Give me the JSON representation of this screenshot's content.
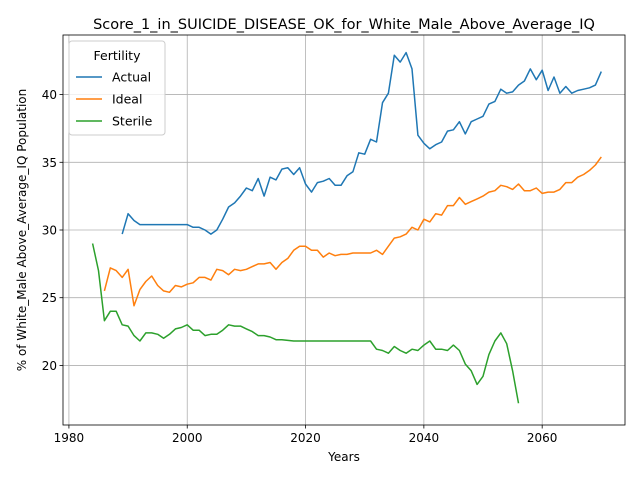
{
  "chart_data": {
    "type": "line",
    "title": "Score_1_in_SUICIDE_DISEASE_OK_for_White_Male_Above_Average_IQ",
    "xlabel": "Years",
    "ylabel": "% of White_Male Above_Average_IQ Population",
    "xlim": [
      1979,
      2074
    ],
    "ylim": [
      15.6,
      44.4
    ],
    "xticks": [
      1980,
      2000,
      2020,
      2040,
      2060
    ],
    "yticks": [
      20,
      25,
      30,
      35,
      40
    ],
    "grid": true,
    "legend": {
      "title": "Fertility",
      "placement": "top-left"
    },
    "series": [
      {
        "name": "Actual",
        "color": "#1f77b4",
        "points": [
          [
            1989,
            29.7
          ],
          [
            1990,
            31.2
          ],
          [
            1991,
            30.7
          ],
          [
            1992,
            30.4
          ],
          [
            1993,
            30.4
          ],
          [
            1995,
            30.4
          ],
          [
            2000,
            30.4
          ],
          [
            2001,
            30.2
          ],
          [
            2002,
            30.2
          ],
          [
            2003,
            30.0
          ],
          [
            2004,
            29.7
          ],
          [
            2005,
            30.0
          ],
          [
            2006,
            30.8
          ],
          [
            2007,
            31.7
          ],
          [
            2008,
            32.0
          ],
          [
            2009,
            32.5
          ],
          [
            2010,
            33.1
          ],
          [
            2011,
            32.9
          ],
          [
            2012,
            33.8
          ],
          [
            2013,
            32.5
          ],
          [
            2014,
            33.9
          ],
          [
            2015,
            33.7
          ],
          [
            2016,
            34.5
          ],
          [
            2017,
            34.6
          ],
          [
            2018,
            34.1
          ],
          [
            2019,
            34.6
          ],
          [
            2020,
            33.4
          ],
          [
            2021,
            32.8
          ],
          [
            2022,
            33.5
          ],
          [
            2023,
            33.6
          ],
          [
            2024,
            33.8
          ],
          [
            2025,
            33.3
          ],
          [
            2026,
            33.3
          ],
          [
            2027,
            34.0
          ],
          [
            2028,
            34.3
          ],
          [
            2029,
            35.7
          ],
          [
            2030,
            35.6
          ],
          [
            2031,
            36.7
          ],
          [
            2032,
            36.5
          ],
          [
            2033,
            39.4
          ],
          [
            2034,
            40.1
          ],
          [
            2035,
            42.9
          ],
          [
            2036,
            42.4
          ],
          [
            2037,
            43.1
          ],
          [
            2038,
            41.9
          ],
          [
            2039,
            37.0
          ],
          [
            2040,
            36.4
          ],
          [
            2041,
            36.0
          ],
          [
            2042,
            36.3
          ],
          [
            2043,
            36.5
          ],
          [
            2044,
            37.3
          ],
          [
            2045,
            37.4
          ],
          [
            2046,
            38.0
          ],
          [
            2047,
            37.1
          ],
          [
            2048,
            38.0
          ],
          [
            2049,
            38.2
          ],
          [
            2050,
            38.4
          ],
          [
            2051,
            39.3
          ],
          [
            2052,
            39.5
          ],
          [
            2053,
            40.4
          ],
          [
            2054,
            40.1
          ],
          [
            2055,
            40.2
          ],
          [
            2056,
            40.7
          ],
          [
            2057,
            41.0
          ],
          [
            2058,
            41.9
          ],
          [
            2059,
            41.1
          ],
          [
            2060,
            41.8
          ],
          [
            2061,
            40.3
          ],
          [
            2062,
            41.3
          ],
          [
            2063,
            40.1
          ],
          [
            2064,
            40.6
          ],
          [
            2065,
            40.1
          ],
          [
            2066,
            40.3
          ],
          [
            2067,
            40.4
          ],
          [
            2068,
            40.5
          ],
          [
            2069,
            40.7
          ],
          [
            2070,
            41.7
          ]
        ]
      },
      {
        "name": "Ideal",
        "color": "#ff7f0e",
        "points": [
          [
            1986,
            25.5
          ],
          [
            1987,
            27.2
          ],
          [
            1988,
            27.0
          ],
          [
            1989,
            26.5
          ],
          [
            1990,
            27.1
          ],
          [
            1991,
            24.4
          ],
          [
            1992,
            25.6
          ],
          [
            1993,
            26.2
          ],
          [
            1994,
            26.6
          ],
          [
            1995,
            25.9
          ],
          [
            1996,
            25.5
          ],
          [
            1997,
            25.4
          ],
          [
            1998,
            25.9
          ],
          [
            1999,
            25.8
          ],
          [
            2000,
            26.0
          ],
          [
            2001,
            26.1
          ],
          [
            2002,
            26.5
          ],
          [
            2003,
            26.5
          ],
          [
            2004,
            26.3
          ],
          [
            2005,
            27.1
          ],
          [
            2006,
            27.0
          ],
          [
            2007,
            26.7
          ],
          [
            2008,
            27.1
          ],
          [
            2009,
            27.0
          ],
          [
            2010,
            27.1
          ],
          [
            2011,
            27.3
          ],
          [
            2012,
            27.5
          ],
          [
            2013,
            27.5
          ],
          [
            2014,
            27.6
          ],
          [
            2015,
            27.1
          ],
          [
            2016,
            27.6
          ],
          [
            2017,
            27.9
          ],
          [
            2018,
            28.5
          ],
          [
            2019,
            28.8
          ],
          [
            2020,
            28.8
          ],
          [
            2021,
            28.5
          ],
          [
            2022,
            28.5
          ],
          [
            2023,
            28.0
          ],
          [
            2024,
            28.3
          ],
          [
            2025,
            28.1
          ],
          [
            2026,
            28.2
          ],
          [
            2027,
            28.2
          ],
          [
            2028,
            28.3
          ],
          [
            2029,
            28.3
          ],
          [
            2030,
            28.3
          ],
          [
            2031,
            28.3
          ],
          [
            2032,
            28.5
          ],
          [
            2033,
            28.2
          ],
          [
            2034,
            28.8
          ],
          [
            2035,
            29.4
          ],
          [
            2036,
            29.5
          ],
          [
            2037,
            29.7
          ],
          [
            2038,
            30.2
          ],
          [
            2039,
            30.0
          ],
          [
            2040,
            30.8
          ],
          [
            2041,
            30.6
          ],
          [
            2042,
            31.2
          ],
          [
            2043,
            31.1
          ],
          [
            2044,
            31.8
          ],
          [
            2045,
            31.8
          ],
          [
            2046,
            32.4
          ],
          [
            2047,
            31.9
          ],
          [
            2048,
            32.1
          ],
          [
            2049,
            32.3
          ],
          [
            2050,
            32.5
          ],
          [
            2051,
            32.8
          ],
          [
            2052,
            32.9
          ],
          [
            2053,
            33.3
          ],
          [
            2054,
            33.2
          ],
          [
            2055,
            33.0
          ],
          [
            2056,
            33.4
          ],
          [
            2057,
            32.9
          ],
          [
            2058,
            32.9
          ],
          [
            2059,
            33.1
          ],
          [
            2060,
            32.7
          ],
          [
            2061,
            32.8
          ],
          [
            2062,
            32.8
          ],
          [
            2063,
            33.0
          ],
          [
            2064,
            33.5
          ],
          [
            2065,
            33.5
          ],
          [
            2066,
            33.9
          ],
          [
            2067,
            34.1
          ],
          [
            2068,
            34.4
          ],
          [
            2069,
            34.8
          ],
          [
            2070,
            35.4
          ]
        ]
      },
      {
        "name": "Sterile",
        "color": "#2ca02c",
        "points": [
          [
            1984,
            29.0
          ],
          [
            1985,
            27.0
          ],
          [
            1986,
            23.3
          ],
          [
            1987,
            24.0
          ],
          [
            1988,
            24.0
          ],
          [
            1989,
            23.0
          ],
          [
            1990,
            22.9
          ],
          [
            1991,
            22.2
          ],
          [
            1992,
            21.8
          ],
          [
            1993,
            22.4
          ],
          [
            1994,
            22.4
          ],
          [
            1995,
            22.3
          ],
          [
            1996,
            22.0
          ],
          [
            1997,
            22.3
          ],
          [
            1998,
            22.7
          ],
          [
            1999,
            22.8
          ],
          [
            2000,
            23.0
          ],
          [
            2001,
            22.6
          ],
          [
            2002,
            22.6
          ],
          [
            2003,
            22.2
          ],
          [
            2004,
            22.3
          ],
          [
            2005,
            22.3
          ],
          [
            2006,
            22.6
          ],
          [
            2007,
            23.0
          ],
          [
            2008,
            22.9
          ],
          [
            2009,
            22.9
          ],
          [
            2010,
            22.7
          ],
          [
            2011,
            22.5
          ],
          [
            2012,
            22.2
          ],
          [
            2013,
            22.2
          ],
          [
            2014,
            22.1
          ],
          [
            2015,
            21.9
          ],
          [
            2016,
            21.9
          ],
          [
            2018,
            21.8
          ],
          [
            2020,
            21.8
          ],
          [
            2025,
            21.8
          ],
          [
            2030,
            21.8
          ],
          [
            2031,
            21.8
          ],
          [
            2032,
            21.2
          ],
          [
            2033,
            21.1
          ],
          [
            2034,
            20.9
          ],
          [
            2035,
            21.4
          ],
          [
            2036,
            21.1
          ],
          [
            2037,
            20.9
          ],
          [
            2038,
            21.2
          ],
          [
            2039,
            21.1
          ],
          [
            2040,
            21.5
          ],
          [
            2041,
            21.8
          ],
          [
            2042,
            21.2
          ],
          [
            2043,
            21.2
          ],
          [
            2044,
            21.1
          ],
          [
            2045,
            21.5
          ],
          [
            2046,
            21.1
          ],
          [
            2047,
            20.1
          ],
          [
            2048,
            19.6
          ],
          [
            2049,
            18.6
          ],
          [
            2050,
            19.2
          ],
          [
            2051,
            20.8
          ],
          [
            2052,
            21.8
          ],
          [
            2053,
            22.4
          ],
          [
            2054,
            21.6
          ],
          [
            2055,
            19.6
          ],
          [
            2056,
            17.2
          ]
        ]
      }
    ]
  }
}
